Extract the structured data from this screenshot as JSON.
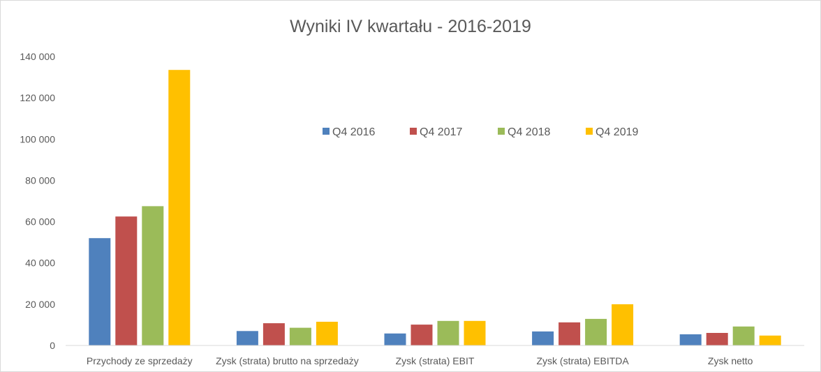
{
  "chart_data": {
    "type": "bar",
    "title": "Wyniki IV kwartału - 2016-2019",
    "categories": [
      "Przychody ze sprzedaży",
      "Zysk (strata) brutto na sprzedaży",
      "Zysk (strata) EBIT",
      "Zysk (strata) EBITDA",
      "Zysk netto"
    ],
    "series": [
      {
        "name": "Q4 2016",
        "color": "#4f81bd",
        "values": [
          52000,
          7000,
          5800,
          6800,
          5400
        ]
      },
      {
        "name": "Q4 2017",
        "color": "#c0504d",
        "values": [
          62500,
          10800,
          10100,
          11200,
          6100
        ]
      },
      {
        "name": "Q4 2018",
        "color": "#9bbb59",
        "values": [
          67500,
          8600,
          11900,
          12900,
          9200
        ]
      },
      {
        "name": "Q4 2019",
        "color": "#ffc000",
        "values": [
          133500,
          11500,
          11900,
          20000,
          4800
        ]
      }
    ],
    "ylim": [
      0,
      140000
    ],
    "yticks": [
      0,
      20000,
      40000,
      60000,
      80000,
      100000,
      120000,
      140000
    ],
    "ytick_labels": [
      "0",
      "20 000",
      "40 000",
      "60 000",
      "80 000",
      "100 000",
      "120 000",
      "140 000"
    ],
    "xlabel": "",
    "ylabel": "",
    "grid": false,
    "legend_position": "inside-top"
  }
}
